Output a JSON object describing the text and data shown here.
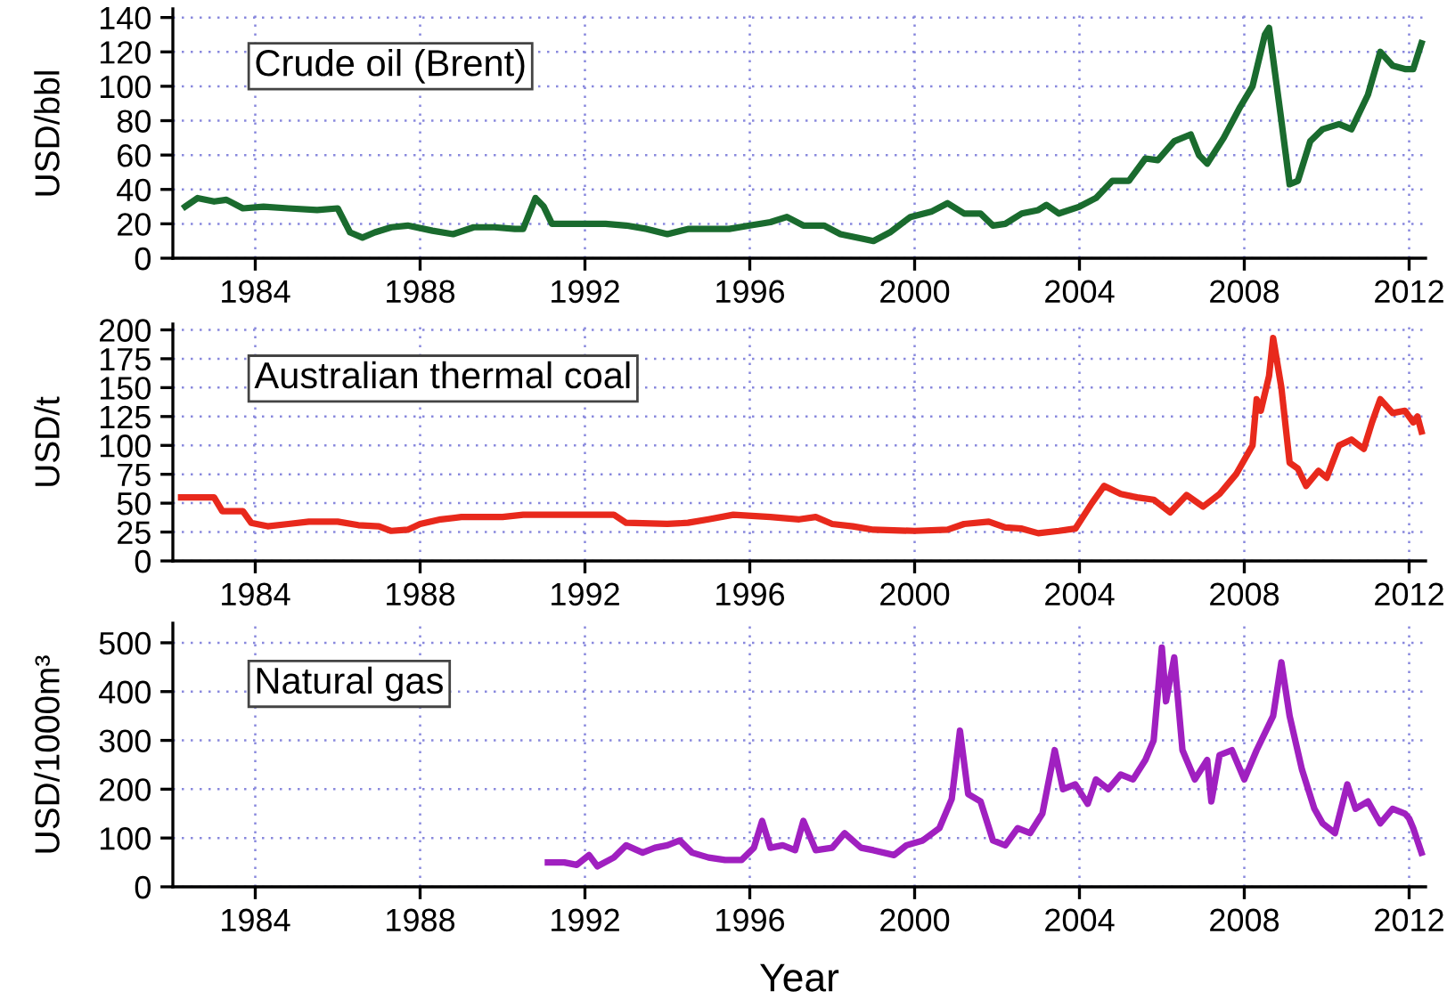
{
  "chart_data": [
    {
      "type": "line",
      "ylabel": "USD/bbl",
      "annotations": [
        "Crude oil (Brent)"
      ],
      "grid": true,
      "legend": false,
      "line_style": "solid",
      "marker": "none",
      "xlim": [
        1982,
        2012.4
      ],
      "xticks": [
        1984,
        1988,
        1992,
        1996,
        2000,
        2004,
        2008,
        2012
      ],
      "ylim": [
        0,
        145
      ],
      "yticks": [
        0,
        20,
        40,
        60,
        80,
        100,
        120,
        140
      ],
      "series": [
        {
          "color": "#1a6b2e",
          "x": [
            1982.3,
            1982.6,
            1983.0,
            1983.3,
            1983.7,
            1984.2,
            1984.8,
            1985.5,
            1986.0,
            1986.3,
            1986.6,
            1986.9,
            1987.3,
            1987.7,
            1988.3,
            1988.8,
            1989.3,
            1989.8,
            1990.3,
            1990.5,
            1990.8,
            1991.0,
            1991.2,
            1991.8,
            1992.5,
            1993.0,
            1993.5,
            1994.0,
            1994.5,
            1995.0,
            1995.5,
            1996.0,
            1996.5,
            1996.9,
            1997.3,
            1997.8,
            1998.2,
            1998.8,
            1999.0,
            1999.4,
            1999.9,
            2000.4,
            2000.8,
            2001.2,
            2001.6,
            2001.9,
            2002.2,
            2002.6,
            2003.0,
            2003.2,
            2003.5,
            2004.0,
            2004.4,
            2004.8,
            2005.2,
            2005.6,
            2005.9,
            2006.3,
            2006.7,
            2006.9,
            2007.1,
            2007.5,
            2007.9,
            2008.2,
            2008.5,
            2008.6,
            2008.9,
            2009.1,
            2009.3,
            2009.6,
            2009.9,
            2010.3,
            2010.6,
            2011.0,
            2011.3,
            2011.6,
            2011.9,
            2012.1,
            2012.3
          ],
          "values": [
            30,
            35,
            33,
            34,
            29,
            30,
            29,
            28,
            29,
            15,
            12,
            15,
            18,
            19,
            16,
            14,
            18,
            18,
            17,
            17,
            35,
            30,
            20,
            20,
            20,
            19,
            17,
            14,
            17,
            17,
            17,
            19,
            21,
            24,
            19,
            19,
            14,
            11,
            10,
            15,
            24,
            27,
            32,
            26,
            26,
            19,
            20,
            26,
            28,
            31,
            26,
            30,
            35,
            45,
            45,
            58,
            57,
            68,
            72,
            60,
            55,
            70,
            88,
            100,
            130,
            134,
            80,
            43,
            45,
            68,
            75,
            78,
            75,
            95,
            120,
            112,
            110,
            110,
            125
          ]
        }
      ]
    },
    {
      "type": "line",
      "ylabel": "USD/t",
      "annotations": [
        "Australian thermal coal"
      ],
      "grid": true,
      "legend": false,
      "line_style": "solid",
      "marker": "none",
      "xlim": [
        1982,
        2012.4
      ],
      "xticks": [
        1984,
        1988,
        1992,
        1996,
        2000,
        2004,
        2008,
        2012
      ],
      "ylim": [
        0,
        205
      ],
      "yticks": [
        0,
        25,
        50,
        75,
        100,
        125,
        150,
        175,
        200
      ],
      "series": [
        {
          "color": "#e8291c",
          "x": [
            1982.2,
            1983.0,
            1983.2,
            1983.7,
            1983.9,
            1984.3,
            1984.8,
            1985.3,
            1986.0,
            1986.5,
            1987.0,
            1987.3,
            1987.7,
            1988.0,
            1988.5,
            1989.0,
            1990.0,
            1990.5,
            1992.0,
            1992.7,
            1993.0,
            1994.0,
            1994.5,
            1995.0,
            1995.6,
            1996.5,
            1997.2,
            1997.6,
            1998.0,
            1998.5,
            1999.0,
            2000.0,
            2000.8,
            2001.2,
            2001.8,
            2002.2,
            2002.6,
            2003.0,
            2003.5,
            2003.9,
            2004.3,
            2004.6,
            2005.0,
            2005.4,
            2005.8,
            2006.2,
            2006.6,
            2007.0,
            2007.4,
            2007.8,
            2008.2,
            2008.3,
            2008.4,
            2008.6,
            2008.7,
            2008.9,
            2009.1,
            2009.3,
            2009.5,
            2009.8,
            2010.0,
            2010.3,
            2010.6,
            2010.9,
            2011.1,
            2011.3,
            2011.6,
            2011.9,
            2012.1,
            2012.2,
            2012.3
          ],
          "values": [
            55,
            55,
            43,
            43,
            33,
            30,
            32,
            34,
            34,
            31,
            30,
            26,
            27,
            32,
            36,
            38,
            38,
            40,
            40,
            40,
            33,
            32,
            33,
            36,
            40,
            38,
            36,
            38,
            32,
            30,
            27,
            26,
            27,
            32,
            34,
            29,
            28,
            24,
            26,
            28,
            50,
            65,
            58,
            55,
            53,
            42,
            57,
            47,
            58,
            75,
            100,
            140,
            130,
            160,
            193,
            150,
            85,
            80,
            65,
            78,
            72,
            100,
            105,
            97,
            120,
            140,
            128,
            130,
            120,
            125,
            112
          ]
        }
      ]
    },
    {
      "type": "line",
      "xlabel": "Year",
      "ylabel": "USD/1000m³",
      "annotations": [
        "Natural gas"
      ],
      "grid": true,
      "legend": false,
      "line_style": "solid",
      "marker": "none",
      "xlim": [
        1982,
        2012.4
      ],
      "xticks": [
        1984,
        1988,
        1992,
        1996,
        2000,
        2004,
        2008,
        2012
      ],
      "ylim": [
        0,
        540
      ],
      "yticks": [
        0,
        100,
        200,
        300,
        400,
        500
      ],
      "series": [
        {
          "color": "#a020c0",
          "x": [
            1991.1,
            1991.5,
            1991.8,
            1992.1,
            1992.3,
            1992.7,
            1993.0,
            1993.4,
            1993.7,
            1994.0,
            1994.3,
            1994.6,
            1995.0,
            1995.4,
            1995.8,
            1996.1,
            1996.3,
            1996.5,
            1996.8,
            1997.1,
            1997.3,
            1997.6,
            1998.0,
            1998.3,
            1998.7,
            1999.0,
            1999.5,
            1999.8,
            2000.2,
            2000.6,
            2000.9,
            2001.1,
            2001.3,
            2001.6,
            2001.9,
            2002.2,
            2002.5,
            2002.8,
            2003.1,
            2003.4,
            2003.6,
            2003.9,
            2004.2,
            2004.4,
            2004.7,
            2005.0,
            2005.3,
            2005.6,
            2005.8,
            2006.0,
            2006.1,
            2006.3,
            2006.5,
            2006.8,
            2007.1,
            2007.2,
            2007.4,
            2007.7,
            2008.0,
            2008.3,
            2008.7,
            2008.9,
            2009.1,
            2009.4,
            2009.7,
            2009.9,
            2010.2,
            2010.5,
            2010.7,
            2011.0,
            2011.3,
            2011.6,
            2011.9,
            2012.0,
            2012.1,
            2012.3
          ],
          "values": [
            50,
            50,
            45,
            65,
            42,
            60,
            85,
            70,
            80,
            85,
            95,
            70,
            60,
            55,
            55,
            80,
            135,
            80,
            85,
            75,
            135,
            75,
            80,
            110,
            80,
            75,
            65,
            85,
            95,
            120,
            180,
            320,
            190,
            175,
            95,
            85,
            120,
            110,
            150,
            280,
            200,
            210,
            170,
            220,
            200,
            230,
            220,
            260,
            300,
            490,
            380,
            470,
            280,
            220,
            260,
            175,
            270,
            280,
            220,
            280,
            350,
            460,
            350,
            240,
            160,
            130,
            110,
            210,
            160,
            175,
            130,
            160,
            150,
            140,
            120,
            70
          ]
        }
      ]
    }
  ]
}
